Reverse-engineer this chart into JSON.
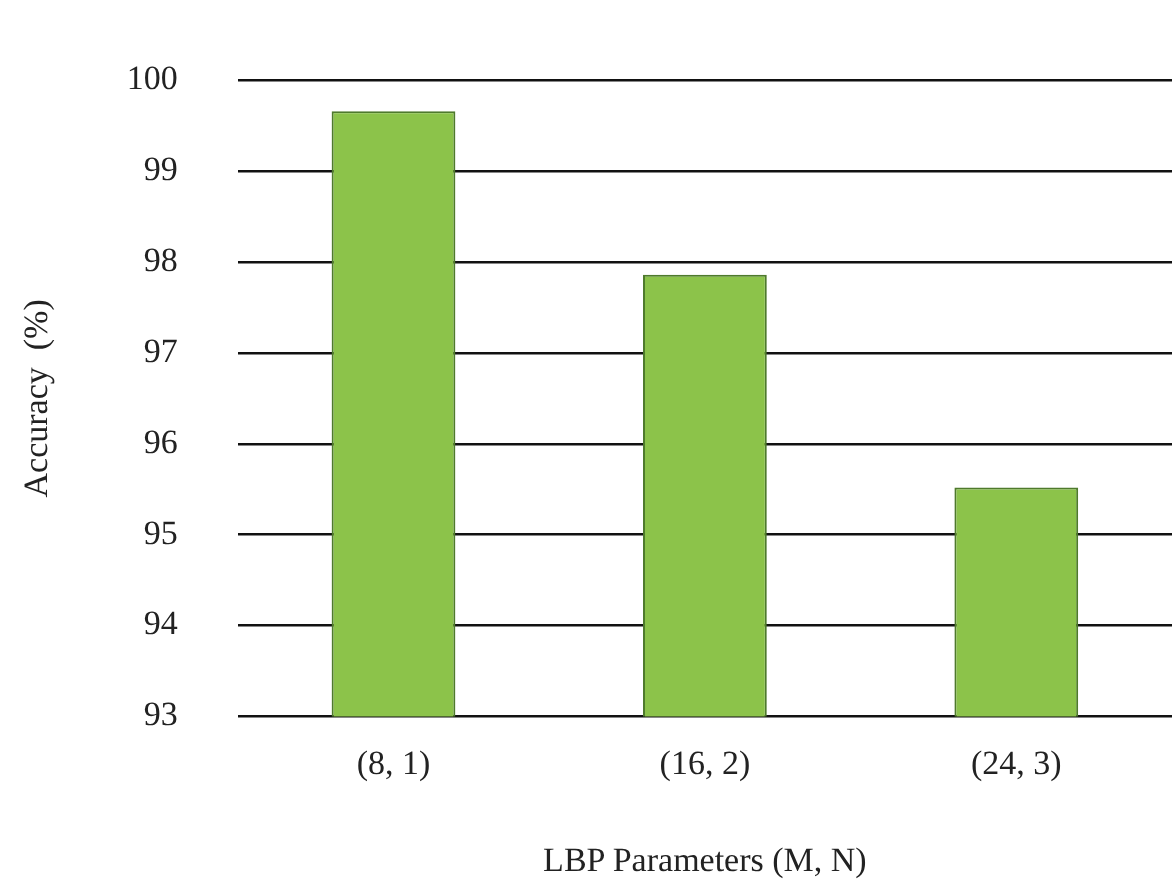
{
  "chart_data": {
    "type": "bar",
    "xlabel": "LBP Parameters (M, N)",
    "ylabel": "Accuracy  (%)",
    "categories": [
      "(8, 1)",
      "(16, 2)",
      "(24, 3)"
    ],
    "values": [
      99.66,
      97.86,
      95.52
    ],
    "color": "#8cc34a",
    "ylim": [
      93,
      100
    ],
    "yticks": [
      93,
      94,
      95,
      96,
      97,
      98,
      99,
      100
    ],
    "grid": "y",
    "legend": false
  }
}
